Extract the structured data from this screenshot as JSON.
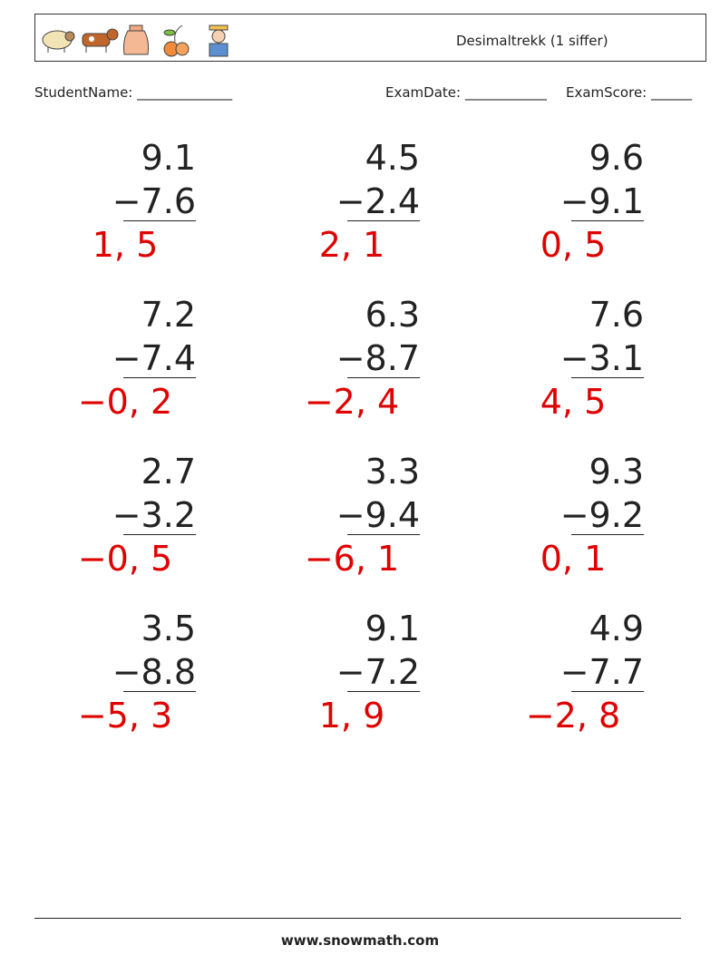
{
  "header": {
    "title": "Desimaltrekk (1 siffer)"
  },
  "fields": {
    "student_name": "StudentName: ______________",
    "exam_date": "ExamDate: ____________",
    "exam_score": "ExamScore: ______"
  },
  "problems": [
    {
      "minuend": "9.1",
      "subtrahend": "−7.6",
      "answer": "1, 5"
    },
    {
      "minuend": "4.5",
      "subtrahend": "−2.4",
      "answer": "2, 1"
    },
    {
      "minuend": "9.6",
      "subtrahend": "−9.1",
      "answer": "0, 5"
    },
    {
      "minuend": "7.2",
      "subtrahend": "−7.4",
      "answer": "−0, 2"
    },
    {
      "minuend": "6.3",
      "subtrahend": "−8.7",
      "answer": "−2, 4"
    },
    {
      "minuend": "7.6",
      "subtrahend": "−3.1",
      "answer": "4, 5"
    },
    {
      "minuend": "2.7",
      "subtrahend": "−3.2",
      "answer": "−0, 5"
    },
    {
      "minuend": "3.3",
      "subtrahend": "−9.4",
      "answer": "−6, 1"
    },
    {
      "minuend": "9.3",
      "subtrahend": "−9.2",
      "answer": "0, 1"
    },
    {
      "minuend": "3.5",
      "subtrahend": "−8.8",
      "answer": "−5, 3"
    },
    {
      "minuend": "9.1",
      "subtrahend": "−7.2",
      "answer": "1, 9"
    },
    {
      "minuend": "4.9",
      "subtrahend": "−7.7",
      "answer": "−2, 8"
    }
  ],
  "footer": {
    "url": "www.snowmath.com"
  }
}
